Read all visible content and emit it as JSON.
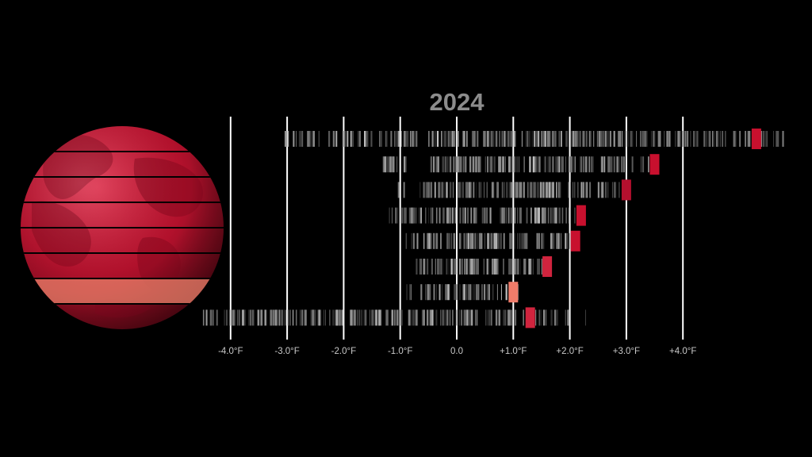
{
  "chart_data": {
    "type": "strip",
    "title": "2024",
    "xlabel": "",
    "ylabel": "",
    "x_unit": "°F",
    "xlim": [
      -4.4,
      5.8
    ],
    "ticks": [
      -4.0,
      -3.0,
      -2.0,
      -1.0,
      0.0,
      1.0,
      2.0,
      3.0,
      4.0
    ],
    "tick_labels": [
      "-4.0°F",
      "-3.0°F",
      "-2.0°F",
      "-1.0°F",
      "0.0",
      "+1.0°F",
      "+2.0°F",
      "+3.0°F",
      "+4.0°F"
    ],
    "grid": true,
    "legend": "none",
    "bands": [
      {
        "range": [
          -3.2,
          5.9
        ],
        "highlight": 5.3,
        "color": "#c8102e"
      },
      {
        "range": [
          -1.5,
          3.5
        ],
        "highlight": 3.5,
        "color": "#c8102e"
      },
      {
        "range": [
          -1.1,
          2.9
        ],
        "highlight": 3.0,
        "color": "#b5102e"
      },
      {
        "range": [
          -1.2,
          2.3
        ],
        "highlight": 2.2,
        "color": "#c8102e"
      },
      {
        "range": [
          -1.1,
          2.2
        ],
        "highlight": 2.1,
        "color": "#c8102e"
      },
      {
        "range": [
          -0.8,
          1.7
        ],
        "highlight": 1.6,
        "color": "#d0243e"
      },
      {
        "range": [
          -0.9,
          1.1
        ],
        "highlight": 1.0,
        "color": "#f07c6a"
      },
      {
        "range": [
          -4.6,
          2.3
        ],
        "highlight": 1.3,
        "color": "#d0243e"
      }
    ]
  },
  "colors": {
    "background": "#000000",
    "accent": "#c8102e",
    "globe_light": "#e0334f",
    "globe_dark": "#5a0612"
  }
}
